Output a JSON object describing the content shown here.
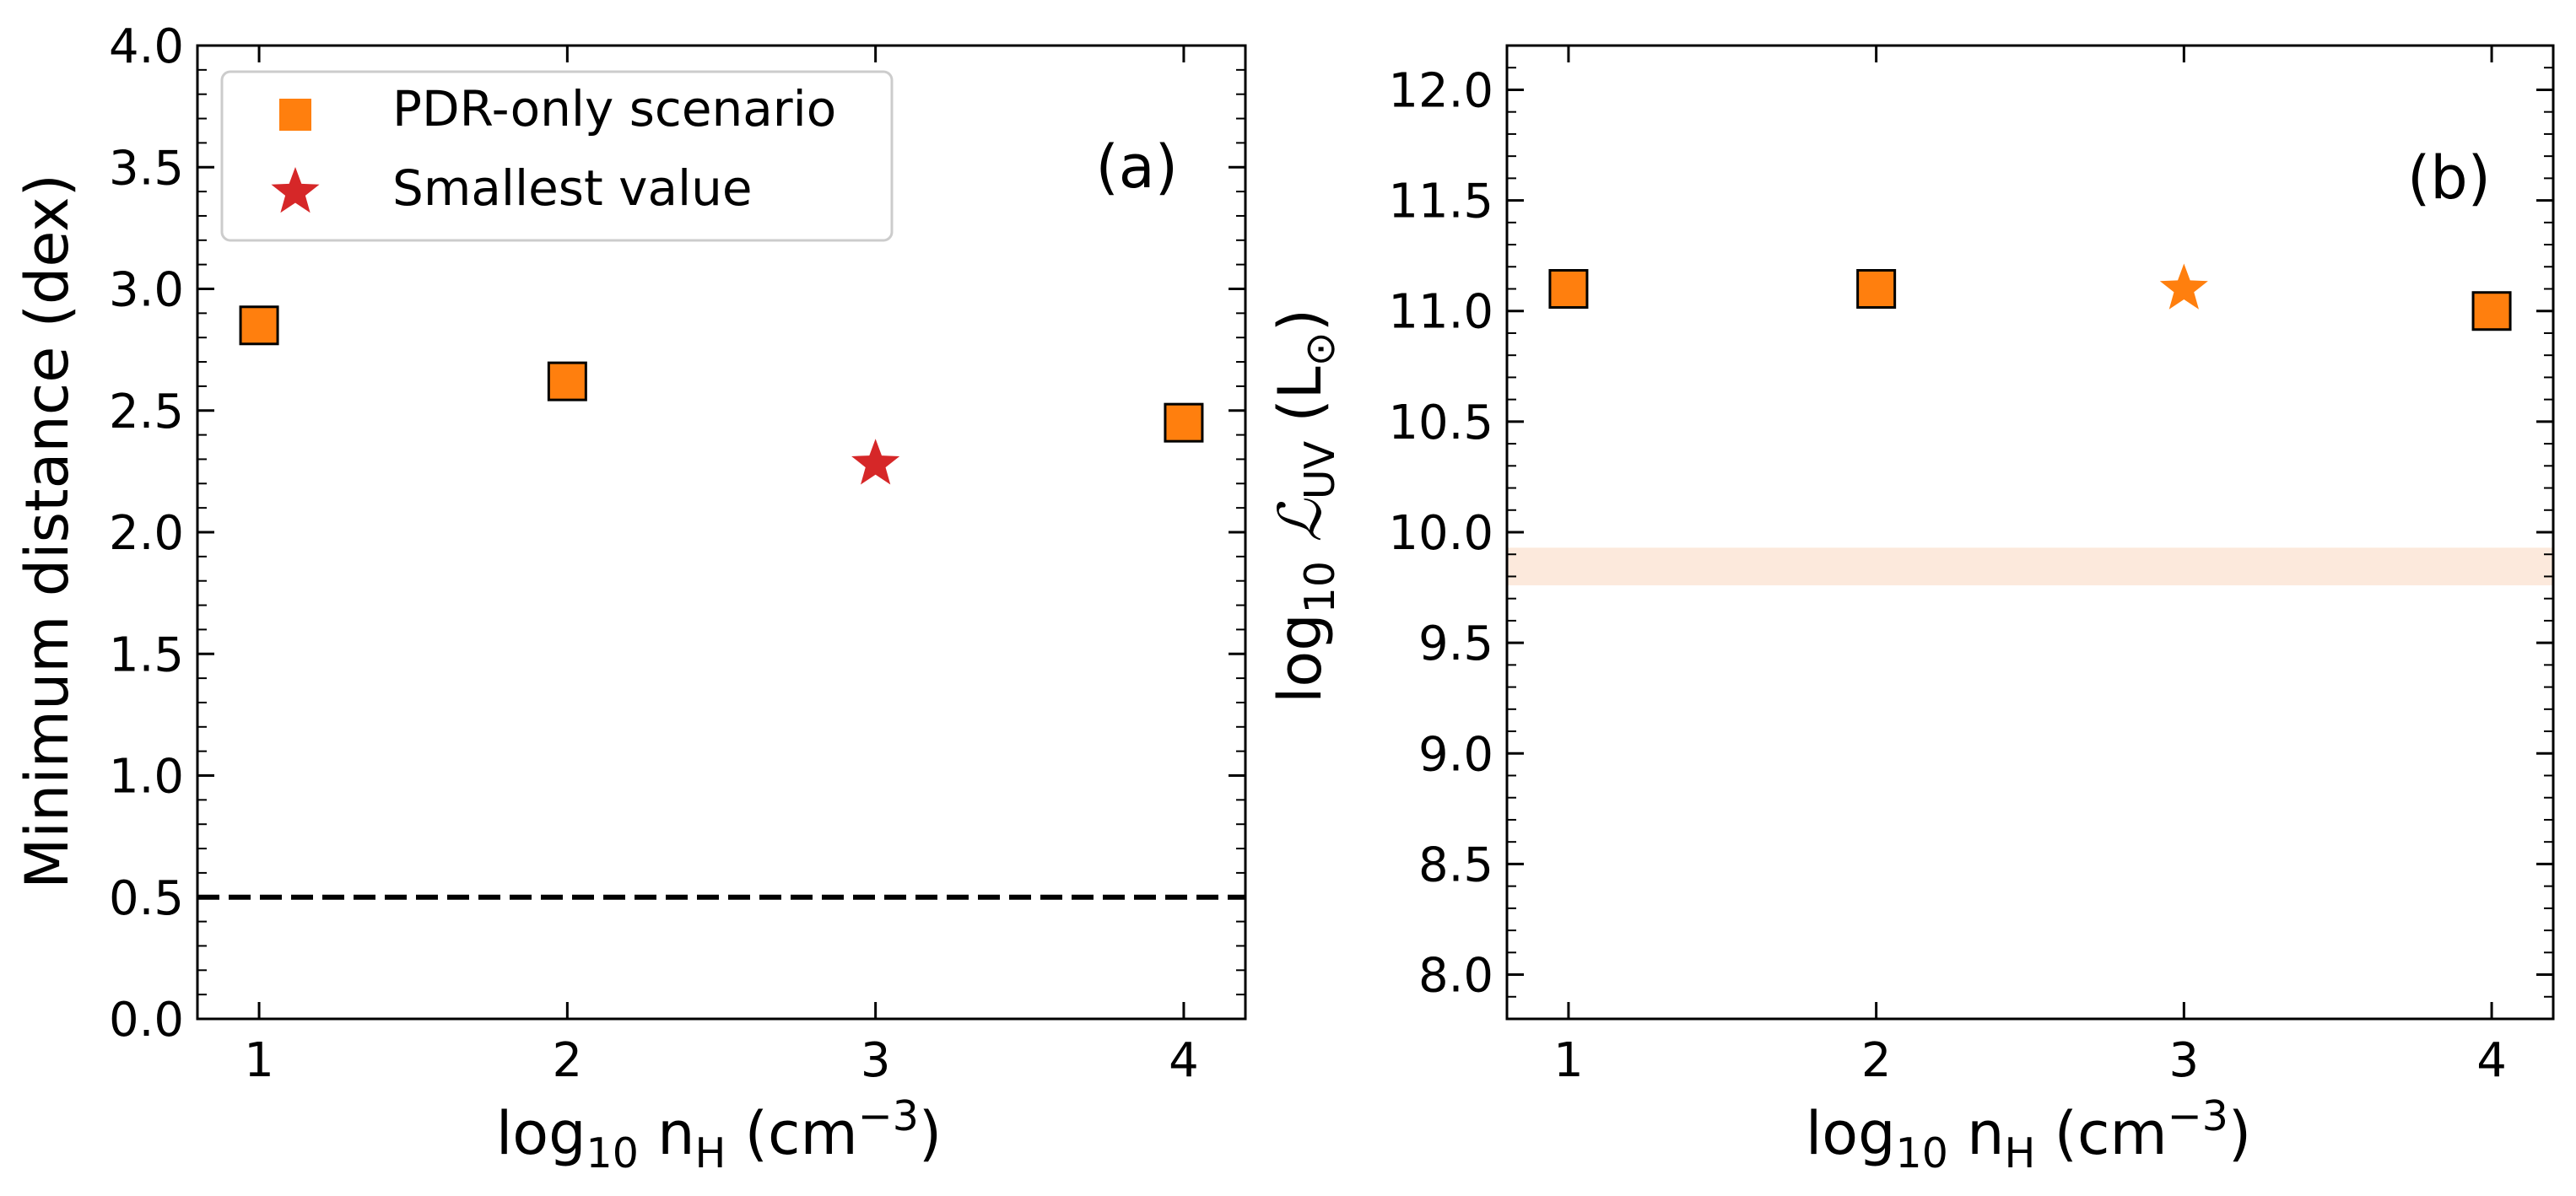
{
  "colors": {
    "orange": "#ff7f0e",
    "red": "#d62728",
    "band": "#fce9dc",
    "axis": "#000000"
  },
  "chart_data": [
    {
      "panel_label": "(a)",
      "type": "scatter",
      "xlabel": {
        "main": "log",
        "sub": "10",
        "var": "n",
        "varsub": "H",
        "unit": "(cm",
        "exp": "−3",
        "close": ")"
      },
      "ylabel": "Minimum distance (dex)",
      "xlim": [
        0.8,
        4.2
      ],
      "ylim": [
        0.0,
        4.0
      ],
      "xticks": [
        1,
        2,
        3,
        4
      ],
      "xtick_labels": [
        "1",
        "2",
        "3",
        "4"
      ],
      "yticks": [
        0.0,
        0.5,
        1.0,
        1.5,
        2.0,
        2.5,
        3.0,
        3.5,
        4.0
      ],
      "ytick_labels": [
        "0.0",
        "0.5",
        "1.0",
        "1.5",
        "2.0",
        "2.5",
        "3.0",
        "3.5",
        "4.0"
      ],
      "grid": false,
      "legend_placement": "top-left",
      "legend": [
        {
          "label": "PDR-only scenario",
          "marker": "square",
          "color": "#ff7f0e"
        },
        {
          "label": "Smallest value",
          "marker": "star",
          "color": "#d62728"
        }
      ],
      "series": [
        {
          "name": "PDR-only scenario",
          "marker": "square",
          "color": "#ff7f0e",
          "x": [
            1,
            2,
            4
          ],
          "y": [
            2.85,
            2.62,
            2.45
          ]
        },
        {
          "name": "Smallest value",
          "marker": "star",
          "color": "#d62728",
          "x": [
            3
          ],
          "y": [
            2.28
          ]
        }
      ],
      "hlines": [
        {
          "y": 0.5,
          "style": "dashed",
          "color": "#000000"
        }
      ]
    },
    {
      "panel_label": "(b)",
      "type": "scatter",
      "xlabel": {
        "main": "log",
        "sub": "10",
        "var": "n",
        "varsub": "H",
        "unit": "(cm",
        "exp": "−3",
        "close": ")"
      },
      "ylabel": {
        "main": "log",
        "sub": "10",
        "var": "ℒ",
        "varsub": "UV",
        "unit": "(L",
        "unitsub": "⊙",
        "close": ")"
      },
      "xlim": [
        0.8,
        4.2
      ],
      "ylim": [
        7.8,
        12.2
      ],
      "xticks": [
        1,
        2,
        3,
        4
      ],
      "xtick_labels": [
        "1",
        "2",
        "3",
        "4"
      ],
      "yticks": [
        8.0,
        8.5,
        9.0,
        9.5,
        10.0,
        10.5,
        11.0,
        11.5,
        12.0
      ],
      "ytick_labels": [
        "8.0",
        "8.5",
        "9.0",
        "9.5",
        "10.0",
        "10.5",
        "11.0",
        "11.5",
        "12.0"
      ],
      "grid": false,
      "series": [
        {
          "name": "",
          "marker": "square",
          "color": "#ff7f0e",
          "x": [
            1,
            2,
            4
          ],
          "y": [
            11.1,
            11.1,
            11.0
          ]
        },
        {
          "name": "",
          "marker": "star",
          "color": "#ff7f0e",
          "x": [
            3
          ],
          "y": [
            11.1
          ]
        }
      ],
      "hbands": [
        {
          "y0": 9.76,
          "y1": 9.93,
          "color": "#fce9dc"
        }
      ]
    }
  ]
}
